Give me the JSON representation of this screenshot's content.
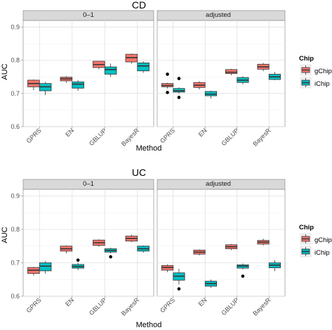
{
  "chart_data": [
    {
      "type": "boxplot",
      "title": "CD",
      "xlabel": "Method",
      "ylabel": "AUC",
      "ylim": [
        0.6,
        0.92
      ],
      "yticks": [
        0.6,
        0.7,
        0.8,
        0.9
      ],
      "categories": [
        "GPRS",
        "EN",
        "GBLUP",
        "BayesR"
      ],
      "legend": {
        "title": "Chip",
        "position": "right",
        "entries": [
          "gChip",
          "iChip"
        ]
      },
      "colors": {
        "gChip": "#f8766d",
        "iChip": "#00bfc4"
      },
      "grid": true,
      "facets": [
        {
          "label": "0–1",
          "series": [
            {
              "name": "gChip",
              "boxes": [
                {
                  "min": 0.71,
                  "q1": 0.72,
                  "median": 0.73,
                  "q3": 0.74,
                  "max": 0.742,
                  "outliers": []
                },
                {
                  "min": 0.732,
                  "q1": 0.738,
                  "median": 0.744,
                  "q3": 0.749,
                  "max": 0.752,
                  "outliers": []
                },
                {
                  "min": 0.773,
                  "q1": 0.778,
                  "median": 0.787,
                  "q3": 0.797,
                  "max": 0.798,
                  "outliers": []
                },
                {
                  "min": 0.79,
                  "q1": 0.795,
                  "median": 0.808,
                  "q3": 0.818,
                  "max": 0.82,
                  "outliers": []
                }
              ]
            },
            {
              "name": "iChip",
              "boxes": [
                {
                  "min": 0.695,
                  "q1": 0.708,
                  "median": 0.72,
                  "q3": 0.73,
                  "max": 0.735,
                  "outliers": []
                },
                {
                  "min": 0.708,
                  "q1": 0.716,
                  "median": 0.728,
                  "q3": 0.735,
                  "max": 0.74,
                  "outliers": []
                },
                {
                  "min": 0.75,
                  "q1": 0.758,
                  "median": 0.772,
                  "q3": 0.78,
                  "max": 0.79,
                  "outliers": []
                },
                {
                  "min": 0.762,
                  "q1": 0.768,
                  "median": 0.783,
                  "q3": 0.792,
                  "max": 0.797,
                  "outliers": []
                }
              ]
            }
          ]
        },
        {
          "label": "adjusted",
          "series": [
            {
              "name": "gChip",
              "boxes": [
                {
                  "min": 0.715,
                  "q1": 0.72,
                  "median": 0.724,
                  "q3": 0.73,
                  "max": 0.732,
                  "outliers": [
                    0.758,
                    0.703
                  ]
                },
                {
                  "min": 0.712,
                  "q1": 0.718,
                  "median": 0.725,
                  "q3": 0.733,
                  "max": 0.737,
                  "outliers": []
                },
                {
                  "min": 0.755,
                  "q1": 0.76,
                  "median": 0.764,
                  "q3": 0.772,
                  "max": 0.774,
                  "outliers": []
                },
                {
                  "min": 0.767,
                  "q1": 0.773,
                  "median": 0.78,
                  "q3": 0.788,
                  "max": 0.792,
                  "outliers": []
                }
              ]
            },
            {
              "name": "iChip",
              "boxes": [
                {
                  "min": 0.7,
                  "q1": 0.704,
                  "median": 0.708,
                  "q3": 0.715,
                  "max": 0.718,
                  "outliers": [
                    0.688,
                    0.745
                  ]
                },
                {
                  "min": 0.685,
                  "q1": 0.693,
                  "median": 0.698,
                  "q3": 0.706,
                  "max": 0.708,
                  "outliers": []
                },
                {
                  "min": 0.728,
                  "q1": 0.733,
                  "median": 0.74,
                  "q3": 0.748,
                  "max": 0.752,
                  "outliers": []
                },
                {
                  "min": 0.74,
                  "q1": 0.742,
                  "median": 0.75,
                  "q3": 0.758,
                  "max": 0.765,
                  "outliers": []
                }
              ]
            }
          ]
        }
      ]
    },
    {
      "type": "boxplot",
      "title": "UC",
      "xlabel": "Method",
      "ylabel": "AUC",
      "ylim": [
        0.6,
        0.92
      ],
      "yticks": [
        0.6,
        0.7,
        0.8,
        0.9
      ],
      "categories": [
        "GPRS",
        "EN",
        "GBLUP",
        "BayesR"
      ],
      "legend": {
        "title": "Chip",
        "position": "right",
        "entries": [
          "gChip",
          "iChip"
        ]
      },
      "colors": {
        "gChip": "#f8766d",
        "iChip": "#00bfc4"
      },
      "grid": true,
      "facets": [
        {
          "label": "0–1",
          "series": [
            {
              "name": "gChip",
              "boxes": [
                {
                  "min": 0.662,
                  "q1": 0.668,
                  "median": 0.678,
                  "q3": 0.686,
                  "max": 0.688,
                  "outliers": []
                },
                {
                  "min": 0.728,
                  "q1": 0.735,
                  "median": 0.742,
                  "q3": 0.75,
                  "max": 0.752,
                  "outliers": []
                },
                {
                  "min": 0.748,
                  "q1": 0.752,
                  "median": 0.76,
                  "q3": 0.768,
                  "max": 0.77,
                  "outliers": []
                },
                {
                  "min": 0.762,
                  "q1": 0.765,
                  "median": 0.773,
                  "q3": 0.78,
                  "max": 0.784,
                  "outliers": []
                }
              ]
            },
            {
              "name": "iChip",
              "boxes": [
                {
                  "min": 0.668,
                  "q1": 0.676,
                  "median": 0.69,
                  "q3": 0.7,
                  "max": 0.705,
                  "outliers": []
                },
                {
                  "min": 0.678,
                  "q1": 0.684,
                  "median": 0.689,
                  "q3": 0.695,
                  "max": 0.7,
                  "outliers": [
                    0.708
                  ]
                },
                {
                  "min": 0.728,
                  "q1": 0.732,
                  "median": 0.737,
                  "q3": 0.742,
                  "max": 0.745,
                  "outliers": [
                    0.718
                  ]
                },
                {
                  "min": 0.73,
                  "q1": 0.735,
                  "median": 0.742,
                  "q3": 0.75,
                  "max": 0.752,
                  "outliers": []
                }
              ]
            }
          ]
        },
        {
          "label": "adjusted",
          "series": [
            {
              "name": "gChip",
              "boxes": [
                {
                  "min": 0.672,
                  "q1": 0.678,
                  "median": 0.686,
                  "q3": 0.692,
                  "max": 0.695,
                  "outliers": []
                },
                {
                  "min": 0.722,
                  "q1": 0.726,
                  "median": 0.732,
                  "q3": 0.738,
                  "max": 0.74,
                  "outliers": []
                },
                {
                  "min": 0.738,
                  "q1": 0.742,
                  "median": 0.748,
                  "q3": 0.754,
                  "max": 0.756,
                  "outliers": []
                },
                {
                  "min": 0.752,
                  "q1": 0.756,
                  "median": 0.762,
                  "q3": 0.767,
                  "max": 0.772,
                  "outliers": []
                }
              ]
            },
            {
              "name": "iChip",
              "boxes": [
                {
                  "min": 0.635,
                  "q1": 0.648,
                  "median": 0.66,
                  "q3": 0.67,
                  "max": 0.682,
                  "outliers": [
                    0.622
                  ]
                },
                {
                  "min": 0.625,
                  "q1": 0.63,
                  "median": 0.638,
                  "q3": 0.645,
                  "max": 0.65,
                  "outliers": []
                },
                {
                  "min": 0.68,
                  "q1": 0.684,
                  "median": 0.69,
                  "q3": 0.694,
                  "max": 0.698,
                  "outliers": [
                    0.66
                  ]
                },
                {
                  "min": 0.675,
                  "q1": 0.685,
                  "median": 0.693,
                  "q3": 0.7,
                  "max": 0.708,
                  "outliers": []
                }
              ]
            }
          ]
        }
      ]
    }
  ]
}
